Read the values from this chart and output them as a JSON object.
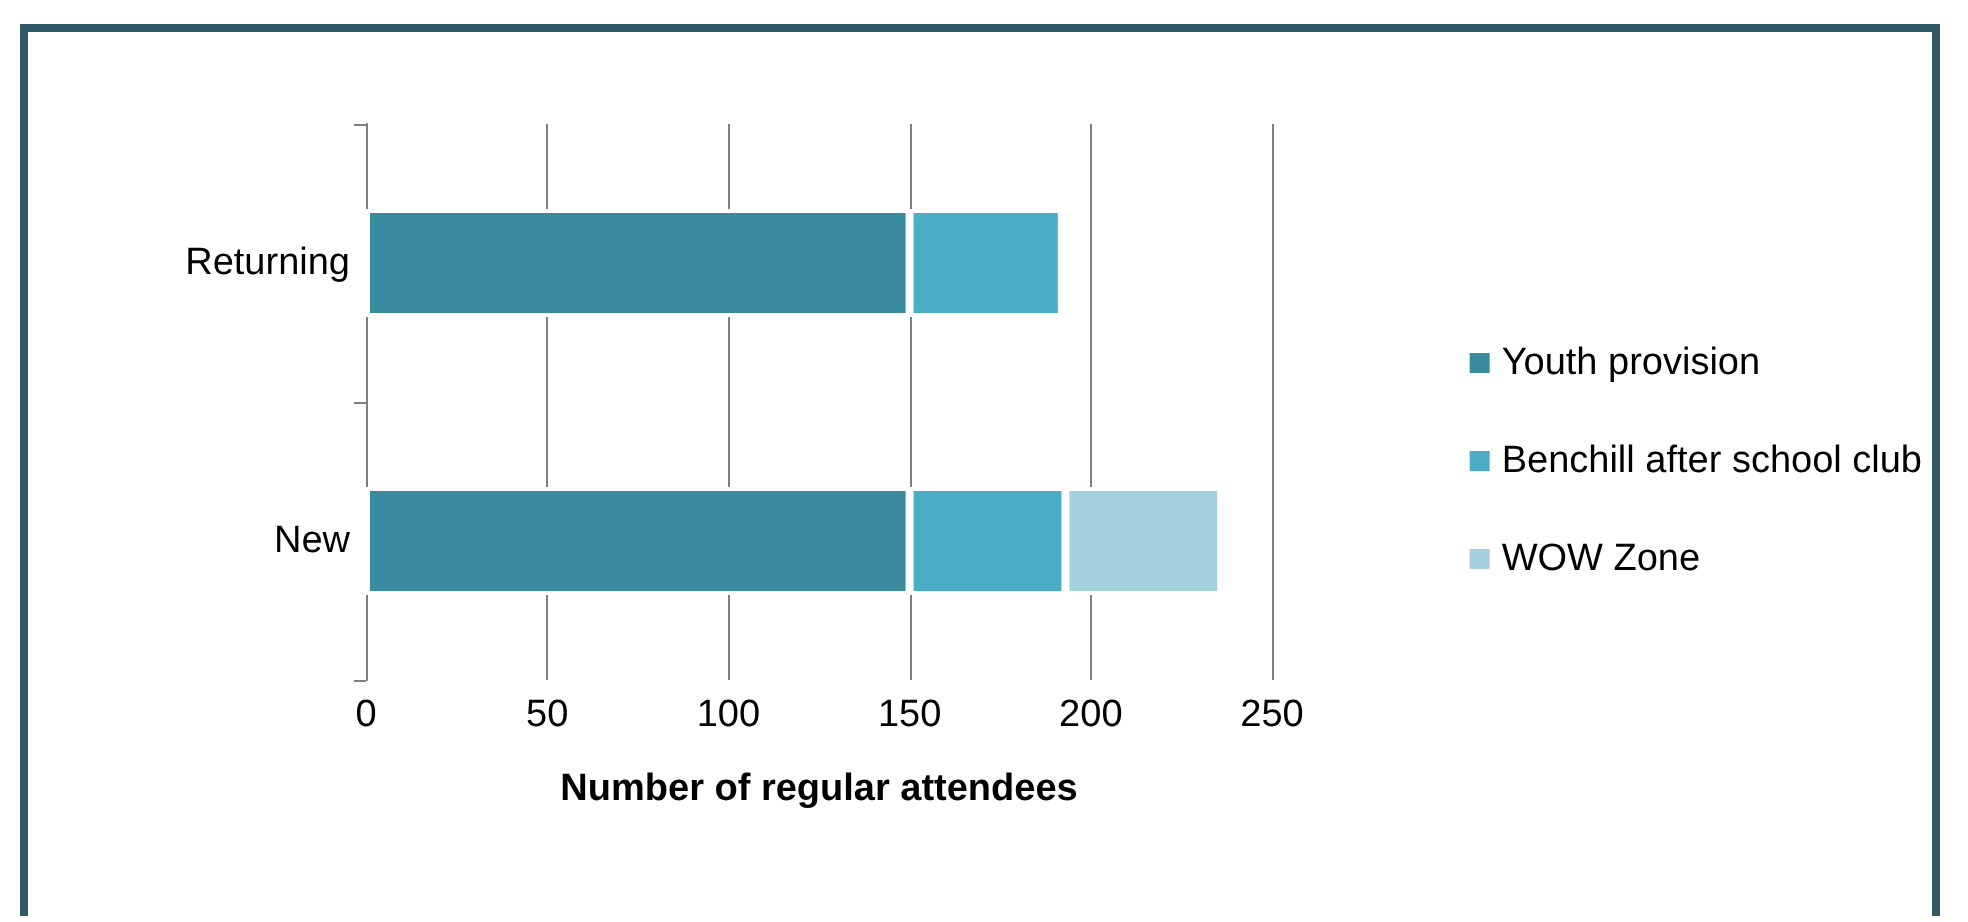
{
  "chart_data": {
    "type": "bar",
    "orientation": "horizontal",
    "stacked": true,
    "xlabel": "Number of regular attendees",
    "categories": [
      "Returning",
      "New"
    ],
    "series": [
      {
        "name": "Youth provision",
        "color": "#3b8ba0",
        "values": [
          150,
          150
        ]
      },
      {
        "name": "Benchill after school club",
        "color": "#4bacc6",
        "values": [
          42,
          43
        ]
      },
      {
        "name": "WOW Zone",
        "color": "#a5d0de",
        "values": [
          null,
          43
        ]
      }
    ],
    "xlim": [
      0,
      250
    ],
    "xticks": [
      0,
      50,
      100,
      150,
      200,
      250
    ],
    "grid": "x",
    "legend": "right"
  }
}
